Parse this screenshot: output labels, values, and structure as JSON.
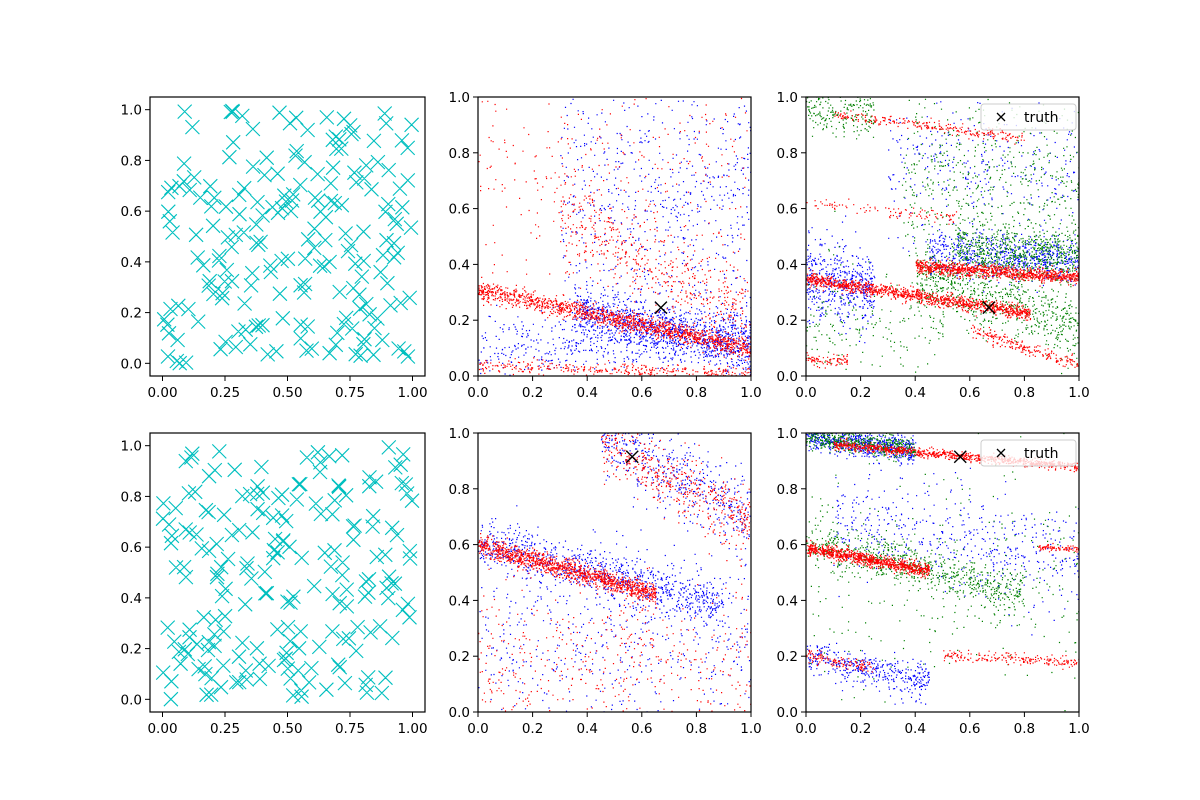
{
  "chart_data": [
    {
      "panel": "row1-col1",
      "type": "scatter",
      "marker": "x",
      "color": "#00bfbf",
      "xlim": [
        -0.05,
        1.05
      ],
      "ylim": [
        -0.05,
        1.05
      ],
      "xticks": [
        "0.00",
        "0.25",
        "0.50",
        "0.75",
        "1.00"
      ],
      "yticks": [
        "0.0",
        "0.2",
        "0.4",
        "0.6",
        "0.8",
        "1.0"
      ],
      "n_points": 200,
      "seed": 11
    },
    {
      "panel": "row1-col2",
      "type": "scatter",
      "xlim": [
        0,
        1
      ],
      "ylim": [
        0,
        1
      ],
      "xticks": [
        "0.0",
        "0.2",
        "0.4",
        "0.6",
        "0.8",
        "1.0"
      ],
      "yticks": [
        "0.0",
        "0.2",
        "0.4",
        "0.6",
        "0.8",
        "1.0"
      ],
      "series": [
        {
          "color": "#0000ff",
          "bands": [
            {
              "a": 0.3,
              "b": -0.2,
              "x0": 0.35,
              "x1": 1.0,
              "sd": 0.05,
              "n": 1100
            },
            {
              "a": 0.1,
              "b": 0.08,
              "x0": 0.0,
              "x1": 1.0,
              "sd": 0.06,
              "n": 500
            },
            {
              "a": 0.7,
              "b": -0.05,
              "x0": 0.3,
              "x1": 1.0,
              "sd": 0.22,
              "n": 600
            }
          ]
        },
        {
          "color": "#ff0000",
          "bands": [
            {
              "a": 0.31,
              "b": -0.21,
              "x0": 0.0,
              "x1": 1.0,
              "sd": 0.018,
              "n": 1400
            },
            {
              "a": 0.04,
              "b": -0.03,
              "x0": 0.0,
              "x1": 1.0,
              "sd": 0.012,
              "n": 350
            },
            {
              "a": 0.72,
              "b": -0.5,
              "x0": 0.3,
              "x1": 1.0,
              "sd": 0.08,
              "n": 500
            },
            {
              "a": 0.75,
              "b": 0.0,
              "x0": 0.0,
              "x1": 1.0,
              "sd": 0.18,
              "n": 300
            }
          ]
        }
      ],
      "truth": {
        "x": 0.67,
        "y": 0.245
      }
    },
    {
      "panel": "row1-col3",
      "type": "scatter",
      "xlim": [
        0,
        1
      ],
      "ylim": [
        0,
        1
      ],
      "xticks": [
        "0.0",
        "0.2",
        "0.4",
        "0.6",
        "0.8",
        "1.0"
      ],
      "yticks": [
        "0.0",
        "0.2",
        "0.4",
        "0.6",
        "0.8",
        "1.0"
      ],
      "series": [
        {
          "color": "#0000ff",
          "bands": [
            {
              "a": 0.35,
              "b": -0.12,
              "x0": 0.0,
              "x1": 0.25,
              "sd": 0.07,
              "n": 500
            },
            {
              "a": 0.48,
              "b": -0.07,
              "x0": 0.45,
              "x1": 1.0,
              "sd": 0.04,
              "n": 700
            },
            {
              "a": 0.75,
              "b": 0.0,
              "x0": 0.3,
              "x1": 1.0,
              "sd": 0.12,
              "n": 300
            }
          ]
        },
        {
          "color": "#008000",
          "bands": [
            {
              "a": 0.95,
              "b": -0.05,
              "x0": 0.0,
              "x1": 0.25,
              "sd": 0.04,
              "n": 200
            },
            {
              "a": 0.7,
              "b": 0.0,
              "x0": 0.35,
              "x1": 1.0,
              "sd": 0.13,
              "n": 500
            },
            {
              "a": 0.48,
              "b": -0.05,
              "x0": 0.55,
              "x1": 1.0,
              "sd": 0.05,
              "n": 700
            },
            {
              "a": 0.48,
              "b": -0.3,
              "x0": 0.4,
              "x1": 1.0,
              "sd": 0.06,
              "n": 700
            },
            {
              "a": 0.2,
              "b": 0.0,
              "x0": 0.0,
              "x1": 0.5,
              "sd": 0.12,
              "n": 200
            }
          ]
        },
        {
          "color": "#ff0000",
          "bands": [
            {
              "a": 0.35,
              "b": -0.15,
              "x0": 0.0,
              "x1": 0.82,
              "sd": 0.012,
              "n": 1200
            },
            {
              "a": 0.42,
              "b": -0.065,
              "x0": 0.4,
              "x1": 1.0,
              "sd": 0.012,
              "n": 1000
            },
            {
              "a": 0.95,
              "b": -0.12,
              "x0": 0.1,
              "x1": 0.8,
              "sd": 0.01,
              "n": 250
            },
            {
              "a": 0.62,
              "b": -0.1,
              "x0": 0.0,
              "x1": 0.55,
              "sd": 0.012,
              "n": 100
            },
            {
              "a": 0.06,
              "b": -0.02,
              "x0": 0.0,
              "x1": 0.15,
              "sd": 0.01,
              "n": 80
            },
            {
              "a": 0.36,
              "b": -0.32,
              "x0": 0.6,
              "x1": 1.0,
              "sd": 0.012,
              "n": 200
            }
          ]
        }
      ],
      "truth": {
        "x": 0.67,
        "y": 0.245
      },
      "legend": {
        "label": "truth",
        "position": "upper right"
      }
    },
    {
      "panel": "row2-col1",
      "type": "scatter",
      "marker": "x",
      "color": "#00bfbf",
      "xlim": [
        -0.05,
        1.05
      ],
      "ylim": [
        -0.05,
        1.05
      ],
      "xticks": [
        "0.00",
        "0.25",
        "0.50",
        "0.75",
        "1.00"
      ],
      "yticks": [
        "0.0",
        "0.2",
        "0.4",
        "0.6",
        "0.8",
        "1.0"
      ],
      "n_points": 200,
      "seed": 27
    },
    {
      "panel": "row2-col2",
      "type": "scatter",
      "xlim": [
        0,
        1
      ],
      "ylim": [
        0,
        1
      ],
      "xticks": [
        "0.0",
        "0.2",
        "0.4",
        "0.6",
        "0.8",
        "1.0"
      ],
      "yticks": [
        "0.0",
        "0.2",
        "0.4",
        "0.6",
        "0.8",
        "1.0"
      ],
      "series": [
        {
          "color": "#0000ff",
          "bands": [
            {
              "a": 0.61,
              "b": -0.25,
              "x0": 0.0,
              "x1": 0.9,
              "sd": 0.04,
              "n": 900
            },
            {
              "a": 1.25,
              "b": -0.55,
              "x0": 0.45,
              "x1": 1.0,
              "sd": 0.07,
              "n": 500
            },
            {
              "a": 0.25,
              "b": 0.0,
              "x0": 0.0,
              "x1": 1.0,
              "sd": 0.16,
              "n": 500
            }
          ]
        },
        {
          "color": "#ff0000",
          "bands": [
            {
              "a": 0.6,
              "b": -0.27,
              "x0": 0.0,
              "x1": 0.65,
              "sd": 0.018,
              "n": 1200
            },
            {
              "a": 1.2,
              "b": -0.52,
              "x0": 0.45,
              "x1": 1.0,
              "sd": 0.06,
              "n": 500
            },
            {
              "a": 0.18,
              "b": 0.0,
              "x0": 0.0,
              "x1": 1.0,
              "sd": 0.14,
              "n": 450
            }
          ]
        }
      ],
      "truth": {
        "x": 0.565,
        "y": 0.915
      }
    },
    {
      "panel": "row2-col3",
      "type": "scatter",
      "xlim": [
        0,
        1
      ],
      "ylim": [
        0,
        1
      ],
      "xticks": [
        "0.0",
        "0.2",
        "0.4",
        "0.6",
        "0.8",
        "1.0"
      ],
      "yticks": [
        "0.0",
        "0.2",
        "0.4",
        "0.6",
        "0.8",
        "1.0"
      ],
      "series": [
        {
          "color": "#0000ff",
          "bands": [
            {
              "a": 0.99,
              "b": -0.12,
              "x0": 0.0,
              "x1": 0.4,
              "sd": 0.025,
              "n": 700
            },
            {
              "a": 0.2,
              "b": -0.2,
              "x0": 0.0,
              "x1": 0.45,
              "sd": 0.03,
              "n": 400
            },
            {
              "a": 0.72,
              "b": -0.2,
              "x0": 0.1,
              "x1": 1.0,
              "sd": 0.09,
              "n": 500
            }
          ]
        },
        {
          "color": "#008000",
          "bands": [
            {
              "a": 0.99,
              "b": -0.12,
              "x0": 0.0,
              "x1": 0.4,
              "sd": 0.02,
              "n": 500
            },
            {
              "a": 0.62,
              "b": -0.25,
              "x0": 0.0,
              "x1": 0.8,
              "sd": 0.04,
              "n": 700
            },
            {
              "a": 0.5,
              "b": 0.0,
              "x0": 0.0,
              "x1": 1.0,
              "sd": 0.25,
              "n": 300
            }
          ]
        },
        {
          "color": "#ff0000",
          "bands": [
            {
              "a": 0.97,
              "b": -0.09,
              "x0": 0.1,
              "x1": 1.0,
              "sd": 0.008,
              "n": 900
            },
            {
              "a": 0.59,
              "b": -0.18,
              "x0": 0.0,
              "x1": 0.45,
              "sd": 0.012,
              "n": 900
            },
            {
              "a": 0.23,
              "b": -0.05,
              "x0": 0.5,
              "x1": 1.0,
              "sd": 0.01,
              "n": 200
            },
            {
              "a": 0.59,
              "b": 0.0,
              "x0": 0.85,
              "x1": 1.0,
              "sd": 0.006,
              "n": 80
            },
            {
              "a": 0.2,
              "b": -0.15,
              "x0": 0.0,
              "x1": 0.25,
              "sd": 0.012,
              "n": 120
            }
          ]
        }
      ],
      "truth": {
        "x": 0.565,
        "y": 0.915
      },
      "legend": {
        "label": "truth",
        "position": "upper right"
      }
    }
  ]
}
